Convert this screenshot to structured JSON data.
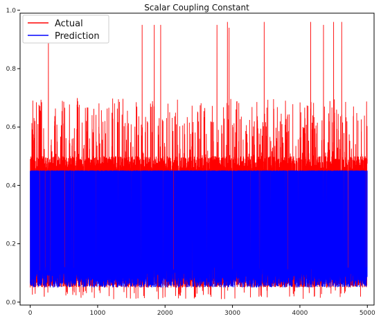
{
  "chart_data": {
    "type": "line",
    "title": "Scalar Coupling Constant",
    "xlabel": "",
    "ylabel": "",
    "xlim": [
      -150,
      5100
    ],
    "ylim": [
      -0.01,
      0.99
    ],
    "x_ticks": [
      0,
      1000,
      2000,
      3000,
      4000,
      5000
    ],
    "y_ticks": [
      0.0,
      0.2,
      0.4,
      0.6,
      0.8,
      1.0
    ],
    "x_tick_labels": [
      "0",
      "1000",
      "2000",
      "3000",
      "4000",
      "5000"
    ],
    "y_tick_labels": [
      "0.0",
      "0.2",
      "0.4",
      "0.6",
      "0.8",
      "1.0"
    ],
    "legend_position": "top-left",
    "grid": false,
    "n_points": 5000,
    "series": [
      {
        "name": "Actual",
        "color": "#ff0000",
        "baseline_range": [
          0.05,
          0.11
        ],
        "frequent_spike_range": [
          0.45,
          0.5
        ],
        "occasional_spike_range": [
          0.5,
          0.7
        ],
        "peaks": [
          {
            "x": 270,
            "y": 0.9
          },
          {
            "x": 1660,
            "y": 0.95
          },
          {
            "x": 1840,
            "y": 0.95
          },
          {
            "x": 1935,
            "y": 0.95
          },
          {
            "x": 2770,
            "y": 0.95
          },
          {
            "x": 2925,
            "y": 0.96
          },
          {
            "x": 2950,
            "y": 0.94
          },
          {
            "x": 3470,
            "y": 0.96
          },
          {
            "x": 4160,
            "y": 0.96
          },
          {
            "x": 4350,
            "y": 0.95
          },
          {
            "x": 4500,
            "y": 0.96
          },
          {
            "x": 4620,
            "y": 0.96
          }
        ]
      },
      {
        "name": "Prediction",
        "color": "#0000ff",
        "low_range": [
          0.05,
          0.12
        ],
        "high_value": 0.45
      }
    ]
  }
}
